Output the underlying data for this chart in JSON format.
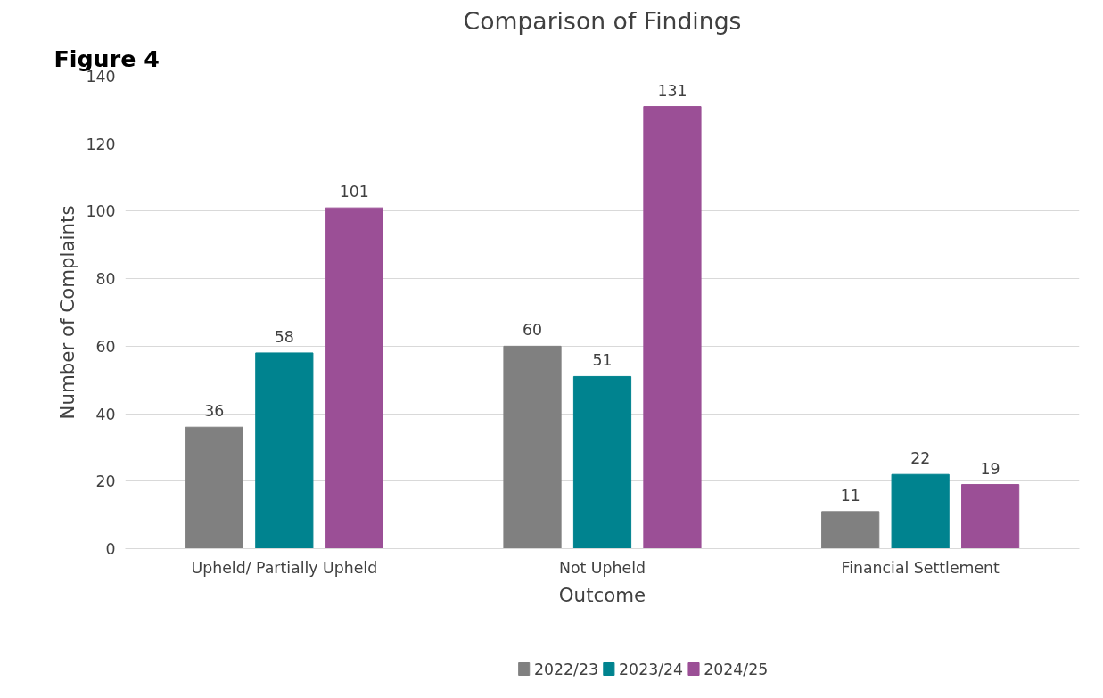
{
  "chart_data": {
    "type": "bar",
    "title": "Comparison of Findings",
    "xlabel": "Outcome",
    "ylabel": "Number of Complaints",
    "annotations": [
      "Figure 4"
    ],
    "categories": [
      "Upheld/ Partially Upheld",
      "Not Upheld",
      "Financial Settlement"
    ],
    "series": [
      {
        "name": "2022/23",
        "color": "#808080",
        "values": [
          36,
          60,
          11
        ]
      },
      {
        "name": "2023/24",
        "color": "#00838f",
        "values": [
          58,
          51,
          22
        ]
      },
      {
        "name": "2024/25",
        "color": "#9b4f96",
        "values": [
          101,
          131,
          19
        ]
      }
    ],
    "ylim": [
      0,
      140
    ],
    "yticks": [
      0,
      20,
      40,
      60,
      80,
      100,
      120,
      140
    ],
    "grid": "y",
    "legend": "bottom",
    "data_labels": true
  }
}
